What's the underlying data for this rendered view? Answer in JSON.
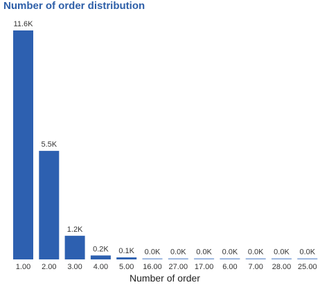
{
  "chart_data": {
    "type": "bar",
    "title": "Number of order distribution",
    "xlabel": "Number of order",
    "ylabel": "",
    "categories": [
      "1.00",
      "2.00",
      "3.00",
      "4.00",
      "5.00",
      "16.00",
      "27.00",
      "17.00",
      "6.00",
      "7.00",
      "28.00",
      "25.00"
    ],
    "values": [
      11600,
      5500,
      1200,
      200,
      100,
      0,
      0,
      0,
      0,
      0,
      0,
      0
    ],
    "data_labels": [
      "11.6K",
      "5.5K",
      "1.2K",
      "0.2K",
      "0.1K",
      "0.0K",
      "0.0K",
      "0.0K",
      "0.0K",
      "0.0K",
      "0.0K",
      "0.0K"
    ],
    "ylim": [
      0,
      11600
    ],
    "bar_color": "#2d60b0",
    "grid": false,
    "legend": "none"
  }
}
